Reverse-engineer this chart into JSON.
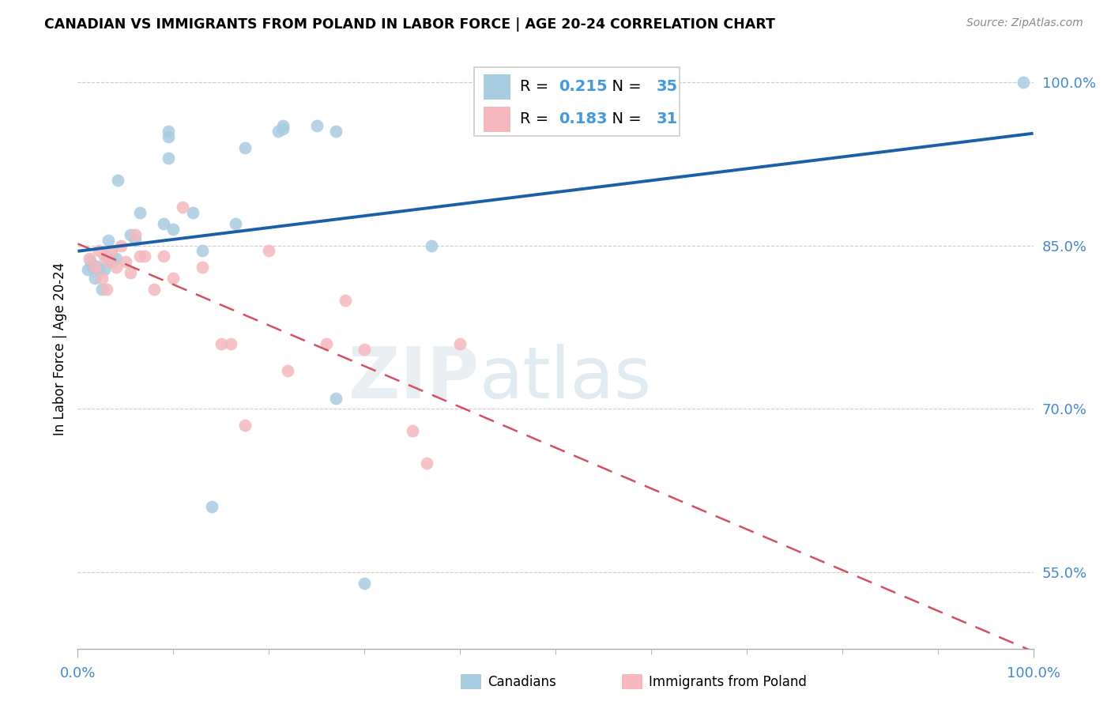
{
  "title": "CANADIAN VS IMMIGRANTS FROM POLAND IN LABOR FORCE | AGE 20-24 CORRELATION CHART",
  "source": "Source: ZipAtlas.com",
  "ylabel": "In Labor Force | Age 20-24",
  "xlim": [
    0.0,
    1.0
  ],
  "ylim": [
    0.48,
    1.03
  ],
  "yticks": [
    0.55,
    0.7,
    0.85,
    1.0
  ],
  "ytick_labels": [
    "55.0%",
    "70.0%",
    "85.0%",
    "100.0%"
  ],
  "xtick_labels": [
    "0.0%",
    "100.0%"
  ],
  "canadian_R": "0.215",
  "canadian_N": "35",
  "poland_R": "0.183",
  "poland_N": "31",
  "blue_scatter": "#a8cce0",
  "pink_scatter": "#f4b8be",
  "line_blue": "#1a5fa8",
  "line_pink": "#d45060",
  "watermark_color": "#e8eef2",
  "canadians_x": [
    0.01,
    0.013,
    0.015,
    0.018,
    0.02,
    0.022,
    0.025,
    0.028,
    0.03,
    0.032,
    0.035,
    0.04,
    0.042,
    0.055,
    0.06,
    0.065,
    0.09,
    0.095,
    0.095,
    0.095,
    0.1,
    0.12,
    0.13,
    0.14,
    0.165,
    0.175,
    0.21,
    0.215,
    0.215,
    0.25,
    0.27,
    0.27,
    0.3,
    0.37,
    0.99
  ],
  "canadians_y": [
    0.828,
    0.836,
    0.83,
    0.82,
    0.831,
    0.828,
    0.81,
    0.828,
    0.84,
    0.855,
    0.835,
    0.838,
    0.91,
    0.86,
    0.855,
    0.88,
    0.87,
    0.93,
    0.95,
    0.955,
    0.865,
    0.88,
    0.845,
    0.61,
    0.87,
    0.94,
    0.955,
    0.96,
    0.957,
    0.96,
    0.71,
    0.955,
    0.54,
    0.85,
    1.0
  ],
  "poland_x": [
    0.012,
    0.018,
    0.022,
    0.025,
    0.028,
    0.03,
    0.032,
    0.035,
    0.04,
    0.045,
    0.05,
    0.055,
    0.06,
    0.065,
    0.07,
    0.08,
    0.09,
    0.1,
    0.11,
    0.13,
    0.15,
    0.16,
    0.175,
    0.2,
    0.22,
    0.26,
    0.28,
    0.3,
    0.35,
    0.365,
    0.4
  ],
  "poland_y": [
    0.838,
    0.83,
    0.845,
    0.82,
    0.84,
    0.81,
    0.835,
    0.845,
    0.83,
    0.85,
    0.835,
    0.825,
    0.86,
    0.84,
    0.84,
    0.81,
    0.84,
    0.82,
    0.885,
    0.83,
    0.76,
    0.76,
    0.685,
    0.845,
    0.735,
    0.76,
    0.8,
    0.755,
    0.68,
    0.65,
    0.76
  ]
}
